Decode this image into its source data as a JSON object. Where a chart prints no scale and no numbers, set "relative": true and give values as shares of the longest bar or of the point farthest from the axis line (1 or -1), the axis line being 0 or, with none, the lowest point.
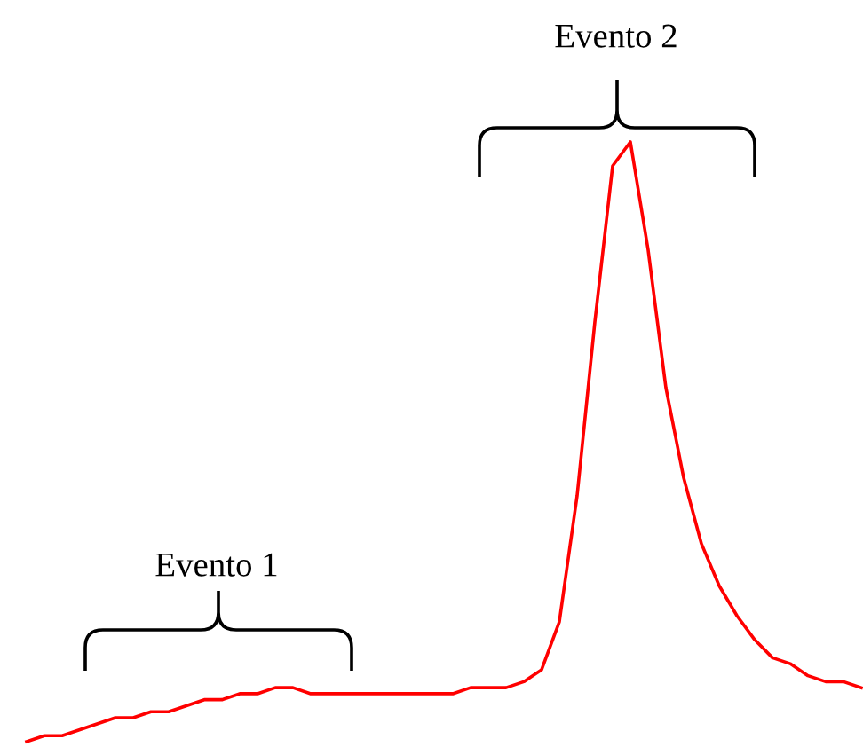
{
  "chart_data": {
    "type": "line",
    "relative": true,
    "categories": [
      null,
      null,
      null,
      null,
      null,
      null,
      null,
      null,
      null,
      null,
      null,
      null,
      null,
      null,
      null,
      null,
      null,
      null,
      null,
      null,
      null,
      null,
      null,
      null,
      null,
      null,
      null,
      null,
      null,
      null,
      null,
      null,
      null,
      null,
      null,
      null,
      null,
      null,
      null,
      null,
      null,
      null,
      null,
      null,
      null,
      null,
      null,
      null
    ],
    "series": [
      {
        "color": "#ff0000",
        "values": [
          0,
          0.01,
          0.01,
          0.02,
          0.03,
          0.04,
          0.04,
          0.05,
          0.05,
          0.06,
          0.07,
          0.07,
          0.08,
          0.08,
          0.09,
          0.09,
          0.08,
          0.08,
          0.08,
          0.08,
          0.08,
          0.08,
          0.08,
          0.08,
          0.08,
          0.09,
          0.09,
          0.09,
          0.1,
          0.12,
          0.2,
          0.41,
          0.7,
          0.96,
          1.0,
          0.82,
          0.59,
          0.44,
          0.33,
          0.26,
          0.21,
          0.17,
          0.14,
          0.13,
          0.11,
          0.1,
          0.1,
          0.09
        ]
      }
    ],
    "annotations": [
      "Evento 1",
      "Evento 2"
    ],
    "marker": "none",
    "line_style": "solid"
  }
}
